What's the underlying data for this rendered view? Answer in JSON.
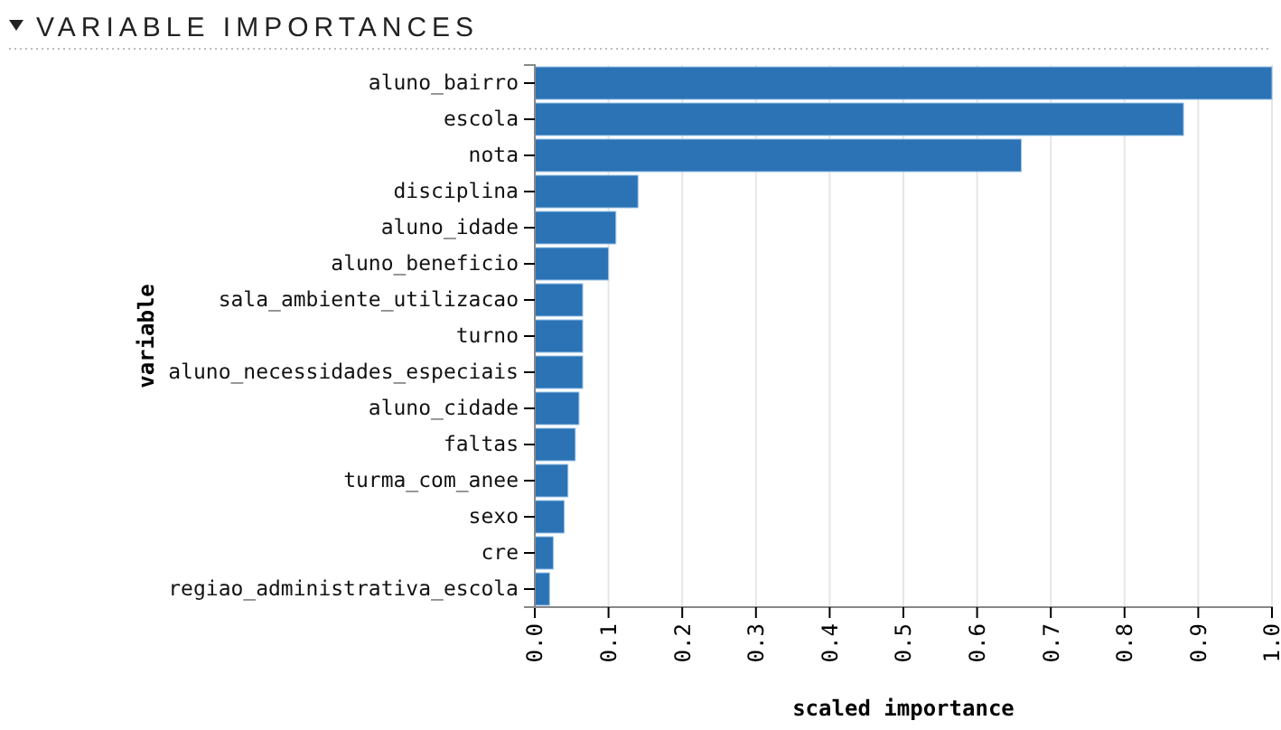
{
  "chart_data": {
    "type": "bar",
    "orientation": "horizontal",
    "title": "VARIABLE IMPORTANCES",
    "xlabel": "scaled importance",
    "ylabel": "variable",
    "categories": [
      "aluno_bairro",
      "escola",
      "nota",
      "disciplina",
      "aluno_idade",
      "aluno_beneficio",
      "sala_ambiente_utilizacao",
      "turno",
      "aluno_necessidades_especiais",
      "aluno_cidade",
      "faltas",
      "turma_com_anee",
      "sexo",
      "cre",
      "regiao_administrativa_escola"
    ],
    "values": [
      1.0,
      0.88,
      0.66,
      0.14,
      0.11,
      0.1,
      0.065,
      0.065,
      0.065,
      0.06,
      0.055,
      0.045,
      0.04,
      0.025,
      0.02
    ],
    "color": "#2b73b5",
    "xlim": [
      0,
      1.0
    ],
    "xticks": [
      {
        "value": 0,
        "label": "0.0"
      },
      0.1,
      0.2,
      0.3,
      0.4,
      0.5,
      0.6,
      0.7,
      0.8,
      0.9,
      {
        "value": 1,
        "label": "1.0"
      }
    ],
    "grid": "x"
  }
}
